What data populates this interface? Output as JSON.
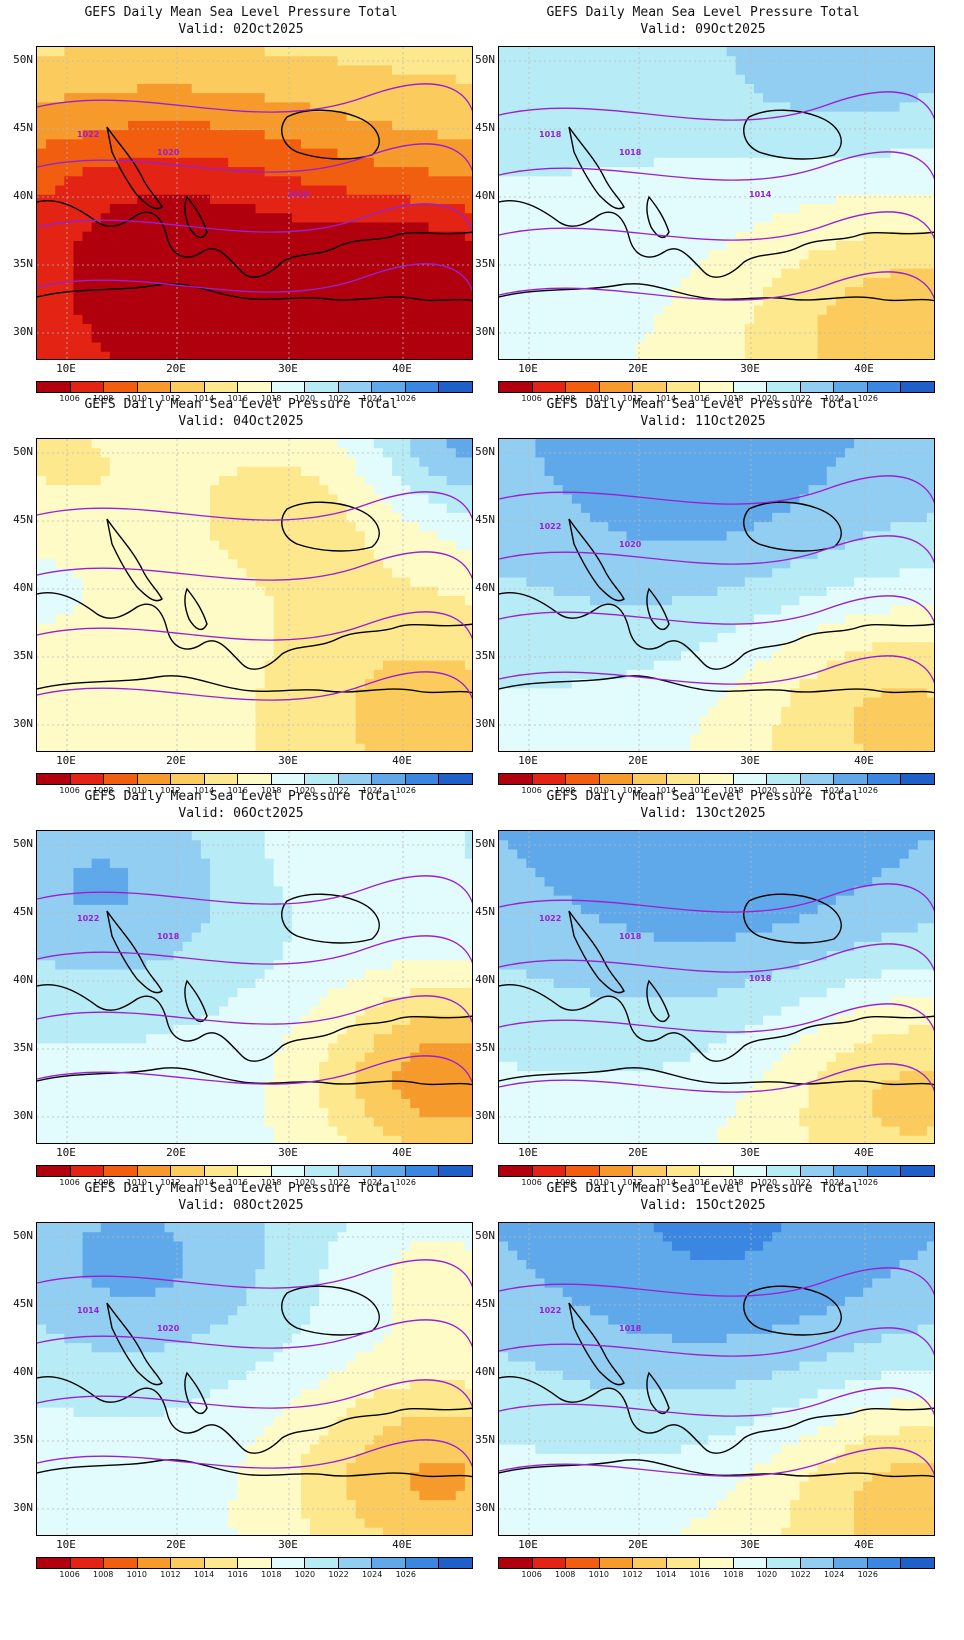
{
  "colors": {
    "isobar": "#9b1fd1",
    "coast": "#000000",
    "grid": "#b8b8b8",
    "legend_fills": [
      "#b0000e",
      "#e32414",
      "#f25e0f",
      "#f79a2c",
      "#fbcb5d",
      "#fde88e",
      "#fefbc6",
      "#e2fbfd",
      "#b7ecf7",
      "#92cef2",
      "#5fa9ea",
      "#3a86e0",
      "#1e60c8"
    ]
  },
  "map": {
    "lat_labels": [
      "50N",
      "45N",
      "40N",
      "35N",
      "30N"
    ],
    "lon_labels": [
      "10E",
      "20E",
      "30E",
      "40E"
    ]
  },
  "colorbar": {
    "tick_labels": [
      "1006",
      "1008",
      "1010",
      "1012",
      "1014",
      "1016",
      "1018",
      "1020",
      "1022",
      "1024",
      "1026"
    ]
  },
  "panels": [
    {
      "title": "GEFS Daily Mean Sea Level Pressure Total",
      "valid": "Valid: 02Oct2025",
      "field": "d02",
      "contour_labels": [
        {
          "text": "1022"
        },
        {
          "text": "1020"
        },
        {
          "text": "1020"
        }
      ]
    },
    {
      "title": "GEFS Daily Mean Sea Level Pressure Total",
      "valid": "Valid: 09Oct2025",
      "field": "d09",
      "contour_labels": [
        {
          "text": "1018"
        },
        {
          "text": "1018"
        },
        {
          "text": "1014"
        }
      ]
    },
    {
      "title": "GEFS Daily Mean Sea Level Pressure Total",
      "valid": "Valid: 04Oct2025",
      "field": "d04",
      "contour_labels": []
    },
    {
      "title": "GEFS Daily Mean Sea Level Pressure Total",
      "valid": "Valid: 11Oct2025",
      "field": "d11",
      "contour_labels": [
        {
          "text": "1022"
        },
        {
          "text": "1020"
        }
      ]
    },
    {
      "title": "GEFS Daily Mean Sea Level Pressure Total",
      "valid": "Valid: 06Oct2025",
      "field": "d06",
      "contour_labels": [
        {
          "text": "1022"
        },
        {
          "text": "1018"
        }
      ]
    },
    {
      "title": "GEFS Daily Mean Sea Level Pressure Total",
      "valid": "Valid: 13Oct2025",
      "field": "d13",
      "contour_labels": [
        {
          "text": "1022"
        },
        {
          "text": "1018"
        },
        {
          "text": "1018"
        }
      ]
    },
    {
      "title": "GEFS Daily Mean Sea Level Pressure Total",
      "valid": "Valid: 08Oct2025",
      "field": "d08",
      "contour_labels": [
        {
          "text": "1014"
        },
        {
          "text": "1020"
        }
      ]
    },
    {
      "title": "GEFS Daily Mean Sea Level Pressure Total",
      "valid": "Valid: 15Oct2025",
      "field": "d15",
      "contour_labels": [
        {
          "text": "1022"
        },
        {
          "text": "1018"
        }
      ]
    }
  ]
}
